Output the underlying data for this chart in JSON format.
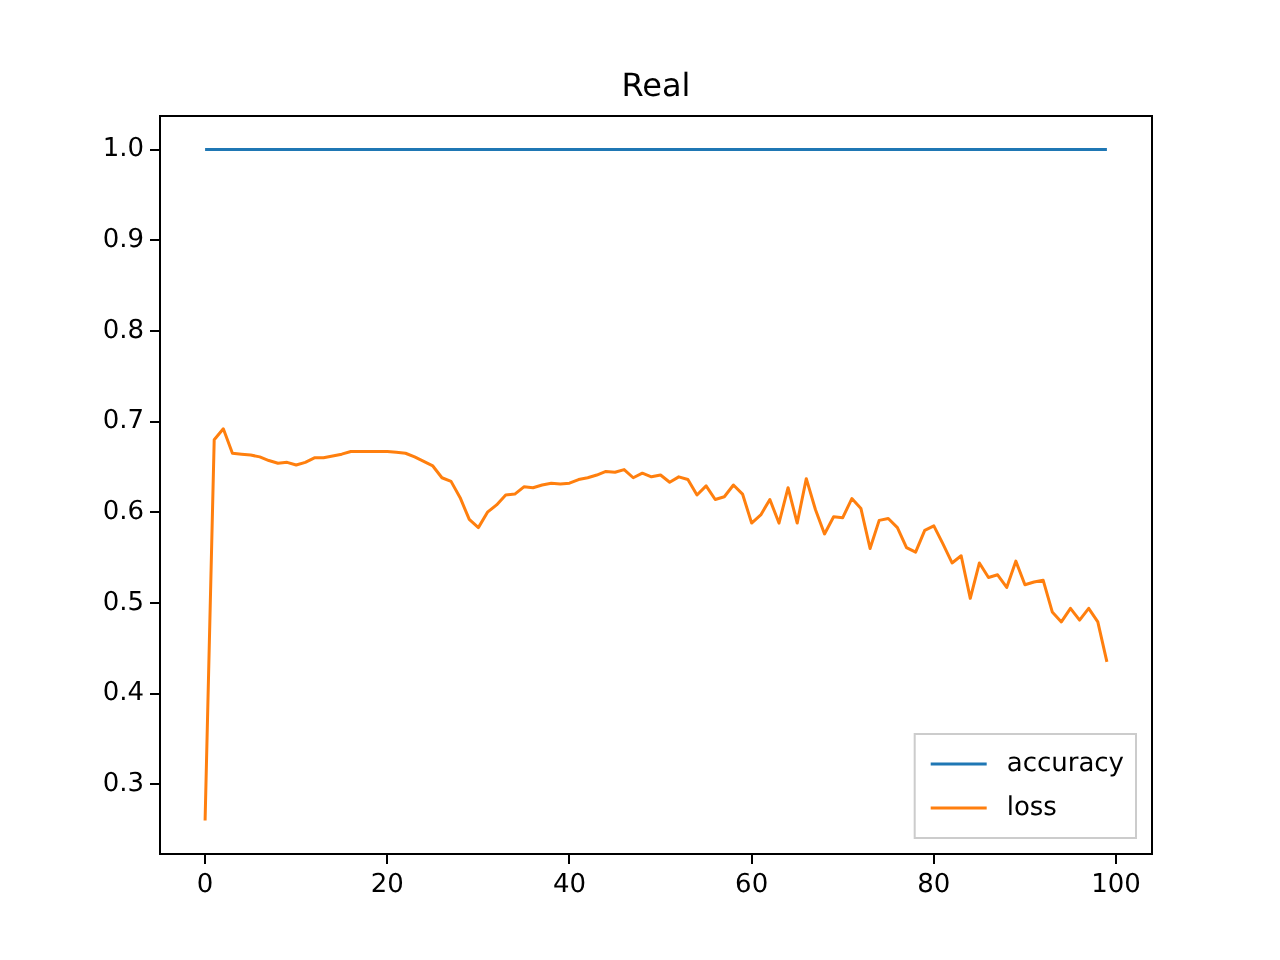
{
  "chart_data": {
    "type": "line",
    "title": "Real",
    "x": [
      0,
      1,
      2,
      3,
      4,
      5,
      6,
      7,
      8,
      9,
      10,
      11,
      12,
      13,
      14,
      15,
      16,
      17,
      18,
      19,
      20,
      21,
      22,
      23,
      24,
      25,
      26,
      27,
      28,
      29,
      30,
      31,
      32,
      33,
      34,
      35,
      36,
      37,
      38,
      39,
      40,
      41,
      42,
      43,
      44,
      45,
      46,
      47,
      48,
      49,
      50,
      51,
      52,
      53,
      54,
      55,
      56,
      57,
      58,
      59,
      60,
      61,
      62,
      63,
      64,
      65,
      66,
      67,
      68,
      69,
      70,
      71,
      72,
      73,
      74,
      75,
      76,
      77,
      78,
      79,
      80,
      81,
      82,
      83,
      84,
      85,
      86,
      87,
      88,
      89,
      90,
      91,
      92,
      93,
      94,
      95,
      96,
      97,
      98,
      99
    ],
    "series": [
      {
        "name": "accuracy",
        "color": "#1f77b4",
        "values": [
          1,
          1,
          1,
          1,
          1,
          1,
          1,
          1,
          1,
          1,
          1,
          1,
          1,
          1,
          1,
          1,
          1,
          1,
          1,
          1,
          1,
          1,
          1,
          1,
          1,
          1,
          1,
          1,
          1,
          1,
          1,
          1,
          1,
          1,
          1,
          1,
          1,
          1,
          1,
          1,
          1,
          1,
          1,
          1,
          1,
          1,
          1,
          1,
          1,
          1,
          1,
          1,
          1,
          1,
          1,
          1,
          1,
          1,
          1,
          1,
          1,
          1,
          1,
          1,
          1,
          1,
          1,
          1,
          1,
          1,
          1,
          1,
          1,
          1,
          1,
          1,
          1,
          1,
          1,
          1,
          1,
          1,
          1,
          1,
          1,
          1,
          1,
          1,
          1,
          1,
          1,
          1,
          1,
          1,
          1,
          1,
          1,
          1,
          1,
          1
        ]
      },
      {
        "name": "loss",
        "color": "#ff7f0e",
        "values": [
          0.26,
          0.68,
          0.692,
          0.665,
          0.664,
          0.663,
          0.661,
          0.657,
          0.654,
          0.655,
          0.652,
          0.655,
          0.66,
          0.66,
          0.662,
          0.664,
          0.667,
          0.667,
          0.667,
          0.667,
          0.667,
          0.666,
          0.665,
          0.661,
          0.656,
          0.651,
          0.638,
          0.634,
          0.616,
          0.592,
          0.583,
          0.6,
          0.608,
          0.619,
          0.62,
          0.628,
          0.627,
          0.63,
          0.632,
          0.631,
          0.632,
          0.636,
          0.638,
          0.641,
          0.645,
          0.644,
          0.647,
          0.638,
          0.643,
          0.639,
          0.641,
          0.633,
          0.639,
          0.636,
          0.619,
          0.629,
          0.614,
          0.617,
          0.63,
          0.62,
          0.588,
          0.597,
          0.614,
          0.588,
          0.627,
          0.588,
          0.637,
          0.603,
          0.576,
          0.595,
          0.594,
          0.615,
          0.604,
          0.56,
          0.591,
          0.593,
          0.583,
          0.561,
          0.556,
          0.58,
          0.585,
          0.565,
          0.544,
          0.552,
          0.505,
          0.544,
          0.528,
          0.531,
          0.517,
          0.546,
          0.52,
          0.523,
          0.525,
          0.49,
          0.479,
          0.494,
          0.481,
          0.494,
          0.479,
          0.435
        ]
      }
    ],
    "xlim": [
      -4.95,
      103.95
    ],
    "xticks": [
      0,
      20,
      40,
      60,
      80,
      100
    ],
    "ylim": [
      0.223,
      1.037
    ],
    "yticks": [
      {
        "value": 0.3,
        "label": "0.3"
      },
      {
        "value": 0.4,
        "label": "0.4"
      },
      {
        "value": 0.5,
        "label": "0.5"
      },
      {
        "value": 0.6,
        "label": "0.6"
      },
      {
        "value": 0.7,
        "label": "0.7"
      },
      {
        "value": 0.8,
        "label": "0.8"
      },
      {
        "value": 0.9,
        "label": "0.9"
      },
      {
        "value": 1.0,
        "label": "1.0"
      }
    ],
    "grid": false,
    "legend": "bottom right",
    "marker": "none",
    "line_style": "solid"
  }
}
